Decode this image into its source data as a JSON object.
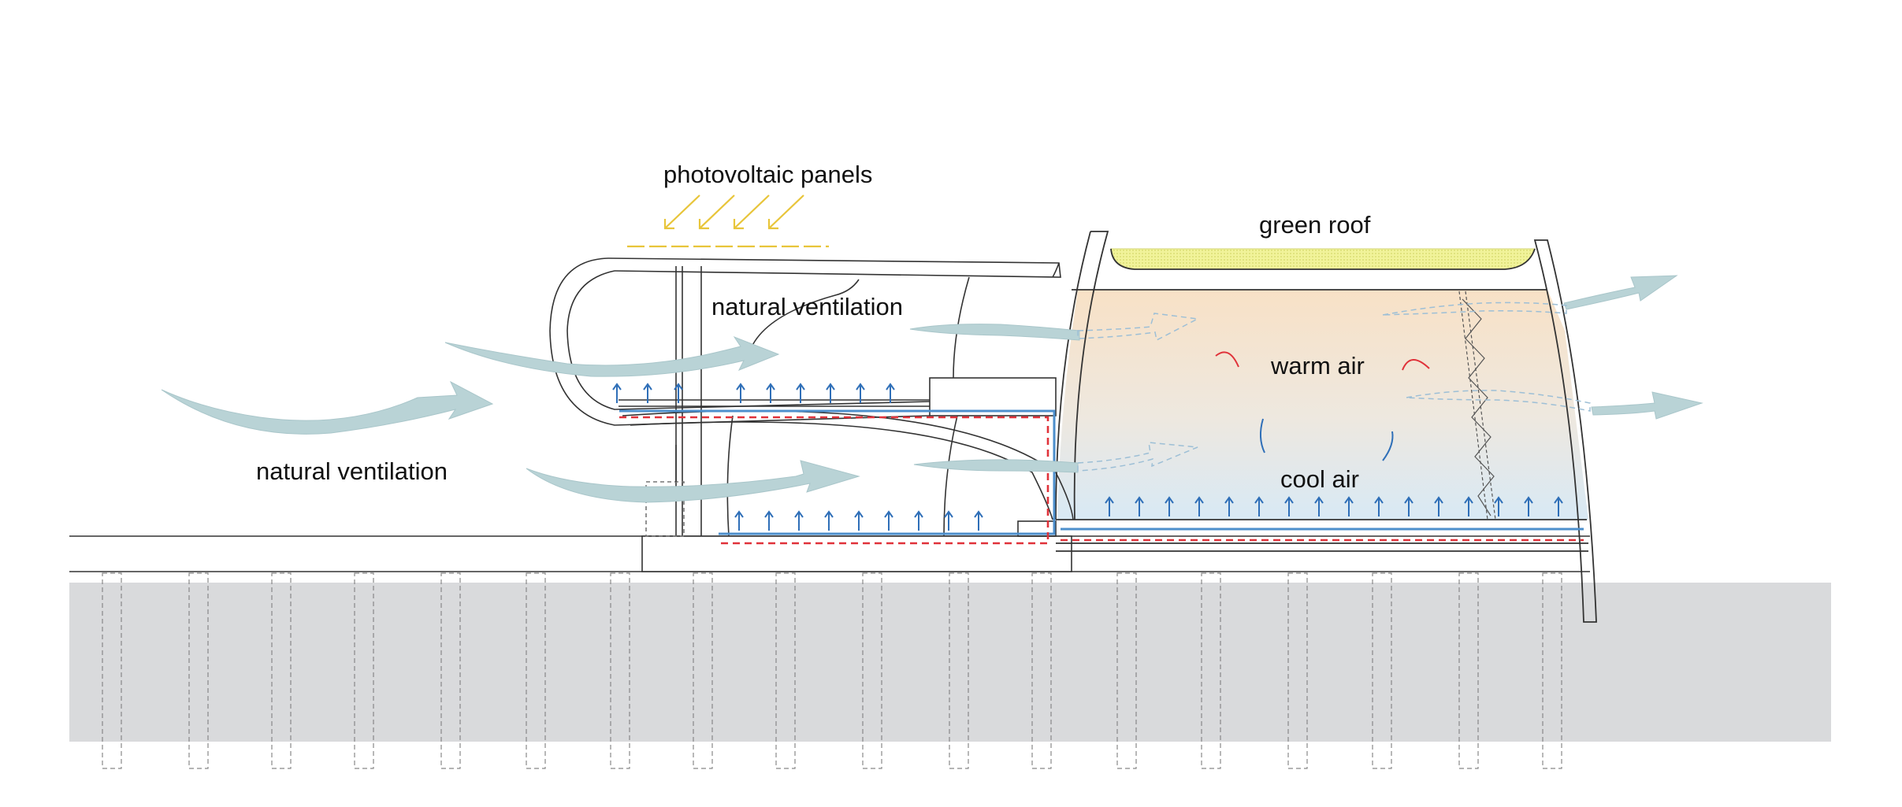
{
  "labels": {
    "photovoltaic": "photovoltaic panels",
    "green_roof": "green roof",
    "natural_ventilation_upper": "natural ventilation",
    "natural_ventilation_left": "natural ventilation",
    "warm_air": "warm air",
    "cool_air": "cool air"
  },
  "colors": {
    "airflow": "#b9d3d6",
    "green_roof": "#eef08e",
    "sun_rays": "#e8c53a",
    "heating_line": "#e0323a",
    "cooling_line": "#4d8fcc",
    "ground": "#d9dadc",
    "warm_zone": "#f8e3c9",
    "cool_zone": "#dceaf4",
    "outline": "#333333"
  }
}
